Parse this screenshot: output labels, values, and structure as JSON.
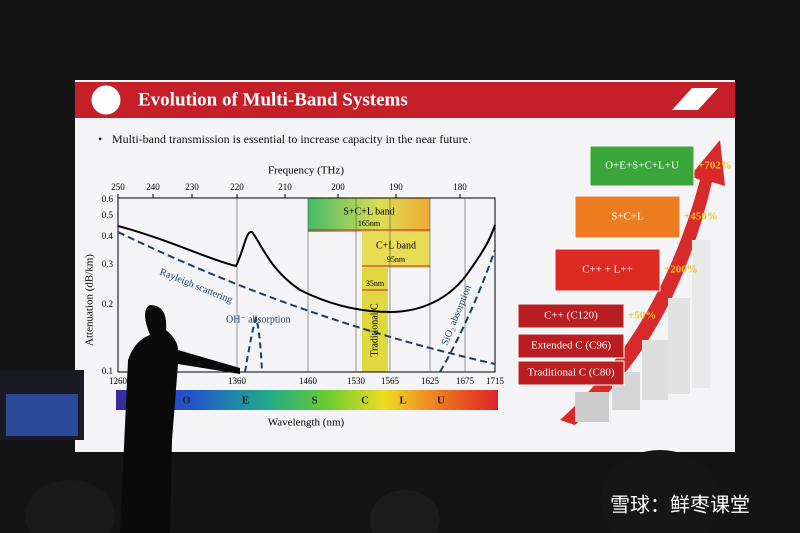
{
  "header": {
    "title": "Evolution of Multi-Band Systems"
  },
  "bullet": "Multi-band transmission is essential to increase capacity in the near future.",
  "plot": {
    "top_axis_label": "Frequency (THz)",
    "top_ticks": [
      250,
      240,
      230,
      220,
      210,
      200,
      190,
      180
    ],
    "y_axis_label": "Attenuation (dB/km)",
    "y_ticks": [
      0.6,
      0.5,
      0.4,
      0.3,
      0.2,
      0.1
    ],
    "bottom_ticks": [
      1260,
      1360,
      1460,
      1530,
      1565,
      1625,
      1675,
      1715
    ],
    "x_axis_label": "Wavelength (nm)",
    "bands": [
      "O",
      "E",
      "S",
      "C",
      "L",
      "U"
    ],
    "annotations": {
      "rayleigh": "Rayleigh scattering",
      "oh": "OH⁻ absorption",
      "sio2": "SiO₂ absorption",
      "scl": "S+C+L band",
      "scl_width": "165nm",
      "cl": "C+L band",
      "cl_width": "95nm",
      "c_width": "35nm",
      "trad_c": "Traditional C"
    }
  },
  "growth": [
    {
      "label": "O+E+S+C+L+U",
      "gain": "+702%"
    },
    {
      "label": "S+C+L",
      "gain": "+450%"
    },
    {
      "label": "C++ + L++",
      "gain": "+200%"
    },
    {
      "label": "C++ (C120)",
      "gain": "+50%"
    },
    {
      "label": "Extended C (C96)"
    },
    {
      "label": "Traditional C (C80)"
    }
  ],
  "watermark": "雪球：鲜枣课堂"
}
